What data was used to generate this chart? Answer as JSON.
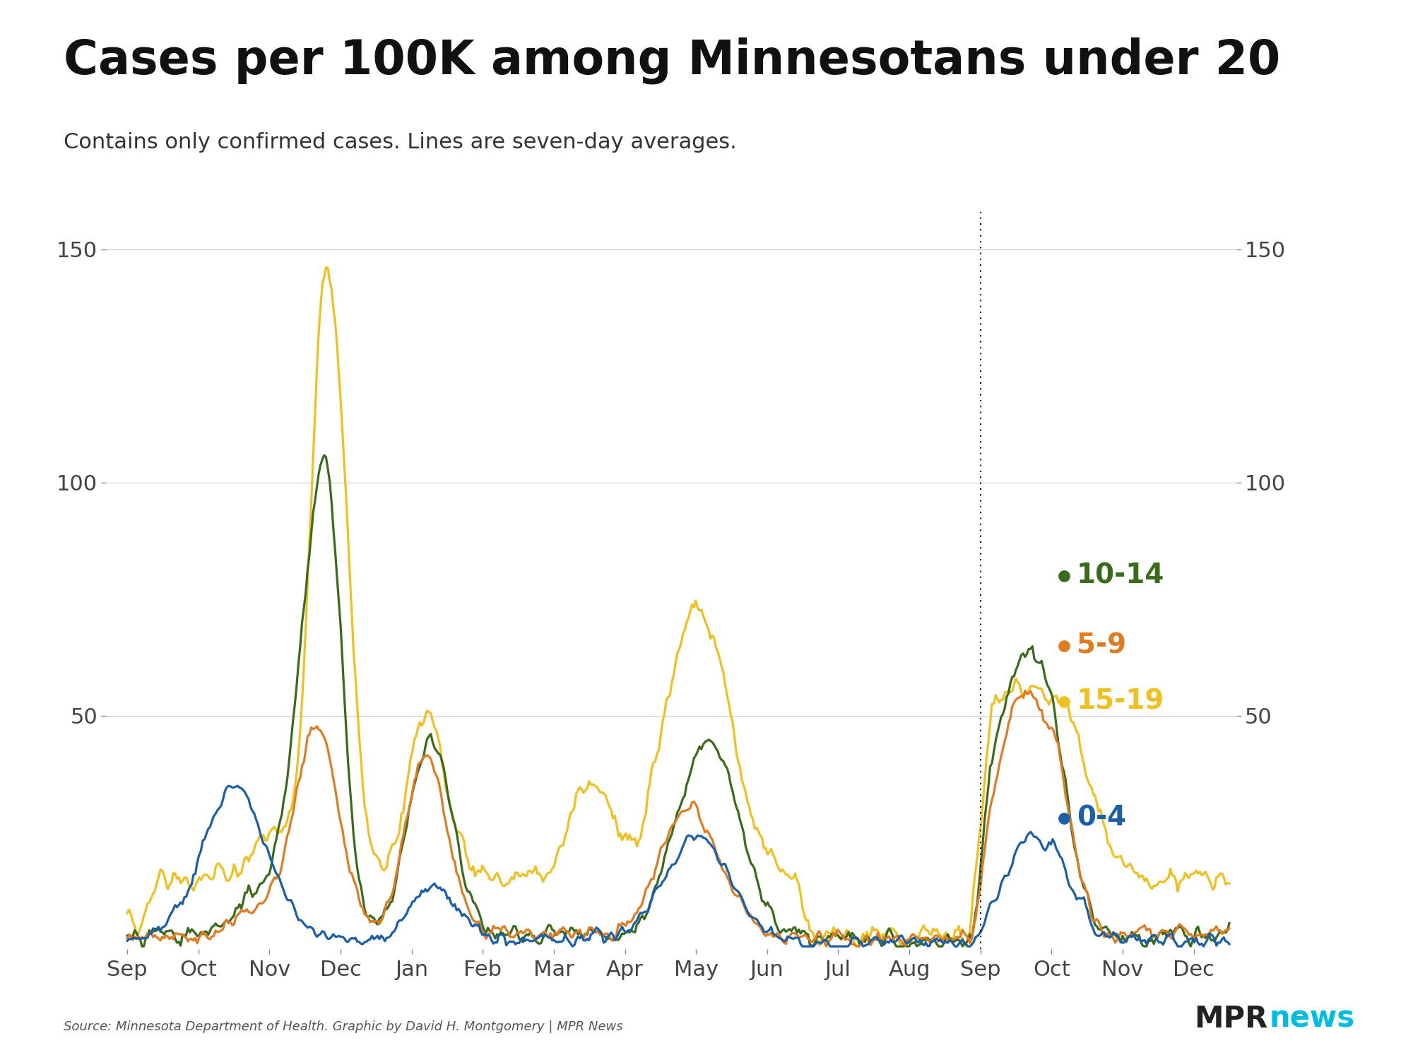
{
  "title": "Cases per 100K among Minnesotans under 20",
  "subtitle": "Contains only confirmed cases. Lines are seven-day averages.",
  "source": "Source: Minnesota Department of Health. Graphic by David H. Montgomery | MPR News",
  "ylim": [
    0,
    158
  ],
  "yticks": [
    50,
    100,
    150
  ],
  "colors": {
    "age_0_4": "#1a5fa8",
    "age_5_9": "#e07b20",
    "age_10_14": "#3a6b1a",
    "age_15_19": "#f0c020"
  },
  "labels": {
    "age_0_4": "0-4",
    "age_5_9": "5-9",
    "age_10_14": "10-14",
    "age_15_19": "15-19"
  },
  "month_labels": [
    "Sep",
    "Oct",
    "Nov",
    "Dec",
    "Jan",
    "Feb",
    "Mar",
    "Apr",
    "May",
    "Jun",
    "Jul",
    "Aug",
    "Sep",
    "Oct",
    "Nov",
    "Dec"
  ],
  "dotted_line_month": 12,
  "background_color": "#ffffff",
  "title_fontsize": 48,
  "subtitle_fontsize": 22,
  "tick_fontsize": 22,
  "label_fontsize": 28
}
